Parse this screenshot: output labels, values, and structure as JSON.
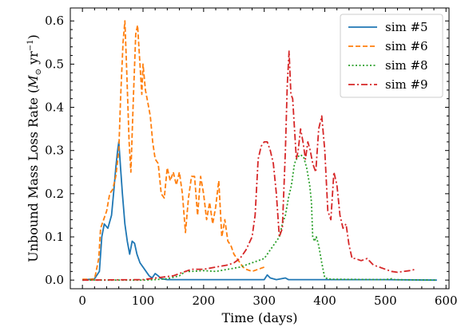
{
  "chart_data": {
    "type": "line",
    "xlabel": "Time (days)",
    "ylabel_main": "Unbound Mass Loss Rate (",
    "ylabel_math": "M",
    "ylabel_sub": "⊙",
    "ylabel_unit": " yr",
    "ylabel_exp": "−1",
    "ylabel_close": ")",
    "xlim": [
      -20,
      605
    ],
    "ylim": [
      -0.02,
      0.63
    ],
    "xticks": [
      0,
      100,
      200,
      300,
      400,
      500,
      600
    ],
    "xtick_labels": [
      "0",
      "100",
      "200",
      "300",
      "400",
      "500",
      "600"
    ],
    "yticks": [
      0.0,
      0.1,
      0.2,
      0.3,
      0.4,
      0.5,
      0.6
    ],
    "ytick_labels": [
      "0.0",
      "0.1",
      "0.2",
      "0.3",
      "0.4",
      "0.5",
      "0.6"
    ],
    "legend_position": "top-right",
    "grid": false,
    "series": [
      {
        "name": "sim #5",
        "color": "#1f77b4",
        "dash": "solid",
        "points": [
          [
            0,
            0
          ],
          [
            20,
            0.003
          ],
          [
            28,
            0.02
          ],
          [
            32,
            0.1
          ],
          [
            36,
            0.13
          ],
          [
            42,
            0.12
          ],
          [
            48,
            0.15
          ],
          [
            52,
            0.21
          ],
          [
            55,
            0.26
          ],
          [
            58,
            0.3
          ],
          [
            60,
            0.32
          ],
          [
            63,
            0.26
          ],
          [
            66,
            0.2
          ],
          [
            70,
            0.13
          ],
          [
            74,
            0.09
          ],
          [
            78,
            0.06
          ],
          [
            82,
            0.09
          ],
          [
            86,
            0.085
          ],
          [
            90,
            0.06
          ],
          [
            95,
            0.04
          ],
          [
            100,
            0.03
          ],
          [
            105,
            0.02
          ],
          [
            110,
            0.01
          ],
          [
            115,
            0.005
          ],
          [
            120,
            0.015
          ],
          [
            125,
            0.01
          ],
          [
            130,
            0.003
          ],
          [
            140,
            0.001
          ],
          [
            200,
            0.001
          ],
          [
            300,
            0.001
          ],
          [
            305,
            0.012
          ],
          [
            310,
            0.005
          ],
          [
            320,
            0.001
          ],
          [
            335,
            0.005
          ],
          [
            340,
            0.001
          ],
          [
            400,
            0.001
          ],
          [
            500,
            0.001
          ],
          [
            585,
            0
          ]
        ]
      },
      {
        "name": "sim #6",
        "color": "#ff7f0e",
        "dash": "dashed",
        "points": [
          [
            0,
            0.002
          ],
          [
            20,
            0.002
          ],
          [
            27,
            0.05
          ],
          [
            30,
            0.12
          ],
          [
            35,
            0.14
          ],
          [
            40,
            0.16
          ],
          [
            45,
            0.2
          ],
          [
            50,
            0.21
          ],
          [
            55,
            0.24
          ],
          [
            60,
            0.3
          ],
          [
            63,
            0.42
          ],
          [
            67,
            0.55
          ],
          [
            70,
            0.6
          ],
          [
            73,
            0.49
          ],
          [
            77,
            0.32
          ],
          [
            80,
            0.25
          ],
          [
            84,
            0.42
          ],
          [
            88,
            0.57
          ],
          [
            91,
            0.59
          ],
          [
            94,
            0.52
          ],
          [
            98,
            0.43
          ],
          [
            100,
            0.5
          ],
          [
            104,
            0.44
          ],
          [
            108,
            0.41
          ],
          [
            112,
            0.38
          ],
          [
            116,
            0.32
          ],
          [
            120,
            0.28
          ],
          [
            125,
            0.27
          ],
          [
            130,
            0.2
          ],
          [
            135,
            0.19
          ],
          [
            140,
            0.26
          ],
          [
            145,
            0.23
          ],
          [
            150,
            0.25
          ],
          [
            155,
            0.22
          ],
          [
            160,
            0.25
          ],
          [
            165,
            0.2
          ],
          [
            170,
            0.11
          ],
          [
            175,
            0.19
          ],
          [
            180,
            0.24
          ],
          [
            185,
            0.24
          ],
          [
            190,
            0.15
          ],
          [
            195,
            0.24
          ],
          [
            200,
            0.2
          ],
          [
            205,
            0.14
          ],
          [
            210,
            0.18
          ],
          [
            215,
            0.13
          ],
          [
            220,
            0.17
          ],
          [
            225,
            0.23
          ],
          [
            230,
            0.1
          ],
          [
            235,
            0.14
          ],
          [
            240,
            0.09
          ],
          [
            245,
            0.08
          ],
          [
            250,
            0.06
          ],
          [
            255,
            0.05
          ],
          [
            260,
            0.04
          ],
          [
            265,
            0.03
          ],
          [
            270,
            0.025
          ],
          [
            280,
            0.02
          ],
          [
            290,
            0.025
          ],
          [
            300,
            0.03
          ]
        ]
      },
      {
        "name": "sim #8",
        "color": "#2ca02c",
        "dash": "dotted",
        "points": [
          [
            0,
            0
          ],
          [
            100,
            0
          ],
          [
            120,
            0.001
          ],
          [
            140,
            0.003
          ],
          [
            160,
            0.01
          ],
          [
            170,
            0.02
          ],
          [
            180,
            0.02
          ],
          [
            200,
            0.022
          ],
          [
            220,
            0.02
          ],
          [
            240,
            0.025
          ],
          [
            260,
            0.03
          ],
          [
            270,
            0.035
          ],
          [
            280,
            0.04
          ],
          [
            290,
            0.045
          ],
          [
            300,
            0.05
          ],
          [
            310,
            0.07
          ],
          [
            320,
            0.09
          ],
          [
            325,
            0.1
          ],
          [
            330,
            0.13
          ],
          [
            335,
            0.15
          ],
          [
            340,
            0.19
          ],
          [
            345,
            0.22
          ],
          [
            350,
            0.27
          ],
          [
            355,
            0.285
          ],
          [
            360,
            0.29
          ],
          [
            365,
            0.285
          ],
          [
            370,
            0.26
          ],
          [
            375,
            0.22
          ],
          [
            378,
            0.18
          ],
          [
            380,
            0.1
          ],
          [
            383,
            0.09
          ],
          [
            386,
            0.1
          ],
          [
            390,
            0.08
          ],
          [
            395,
            0.04
          ],
          [
            400,
            0.005
          ],
          [
            410,
            0.002
          ],
          [
            500,
            0.001
          ],
          [
            510,
            0.003
          ],
          [
            515,
            0.001
          ],
          [
            585,
            0
          ]
        ]
      },
      {
        "name": "sim #9",
        "color": "#d62728",
        "dash": "dashdot",
        "points": [
          [
            0,
            0
          ],
          [
            100,
            0.001
          ],
          [
            150,
            0.01
          ],
          [
            160,
            0.015
          ],
          [
            170,
            0.02
          ],
          [
            180,
            0.025
          ],
          [
            200,
            0.025
          ],
          [
            220,
            0.03
          ],
          [
            240,
            0.035
          ],
          [
            250,
            0.04
          ],
          [
            260,
            0.05
          ],
          [
            270,
            0.07
          ],
          [
            280,
            0.1
          ],
          [
            285,
            0.15
          ],
          [
            290,
            0.28
          ],
          [
            295,
            0.31
          ],
          [
            300,
            0.32
          ],
          [
            305,
            0.32
          ],
          [
            310,
            0.3
          ],
          [
            315,
            0.27
          ],
          [
            320,
            0.2
          ],
          [
            325,
            0.1
          ],
          [
            330,
            0.12
          ],
          [
            335,
            0.3
          ],
          [
            338,
            0.45
          ],
          [
            341,
            0.53
          ],
          [
            344,
            0.43
          ],
          [
            347,
            0.42
          ],
          [
            350,
            0.35
          ],
          [
            353,
            0.28
          ],
          [
            356,
            0.3
          ],
          [
            360,
            0.35
          ],
          [
            364,
            0.32
          ],
          [
            368,
            0.28
          ],
          [
            372,
            0.32
          ],
          [
            376,
            0.3
          ],
          [
            380,
            0.27
          ],
          [
            385,
            0.25
          ],
          [
            390,
            0.35
          ],
          [
            395,
            0.38
          ],
          [
            400,
            0.3
          ],
          [
            405,
            0.16
          ],
          [
            410,
            0.14
          ],
          [
            415,
            0.25
          ],
          [
            420,
            0.22
          ],
          [
            425,
            0.15
          ],
          [
            430,
            0.12
          ],
          [
            435,
            0.13
          ],
          [
            440,
            0.08
          ],
          [
            445,
            0.05
          ],
          [
            450,
            0.05
          ],
          [
            460,
            0.045
          ],
          [
            470,
            0.05
          ],
          [
            480,
            0.035
          ],
          [
            490,
            0.03
          ],
          [
            500,
            0.025
          ],
          [
            510,
            0.02
          ],
          [
            520,
            0.018
          ],
          [
            530,
            0.02
          ],
          [
            540,
            0.022
          ],
          [
            550,
            0.025
          ]
        ]
      }
    ]
  }
}
